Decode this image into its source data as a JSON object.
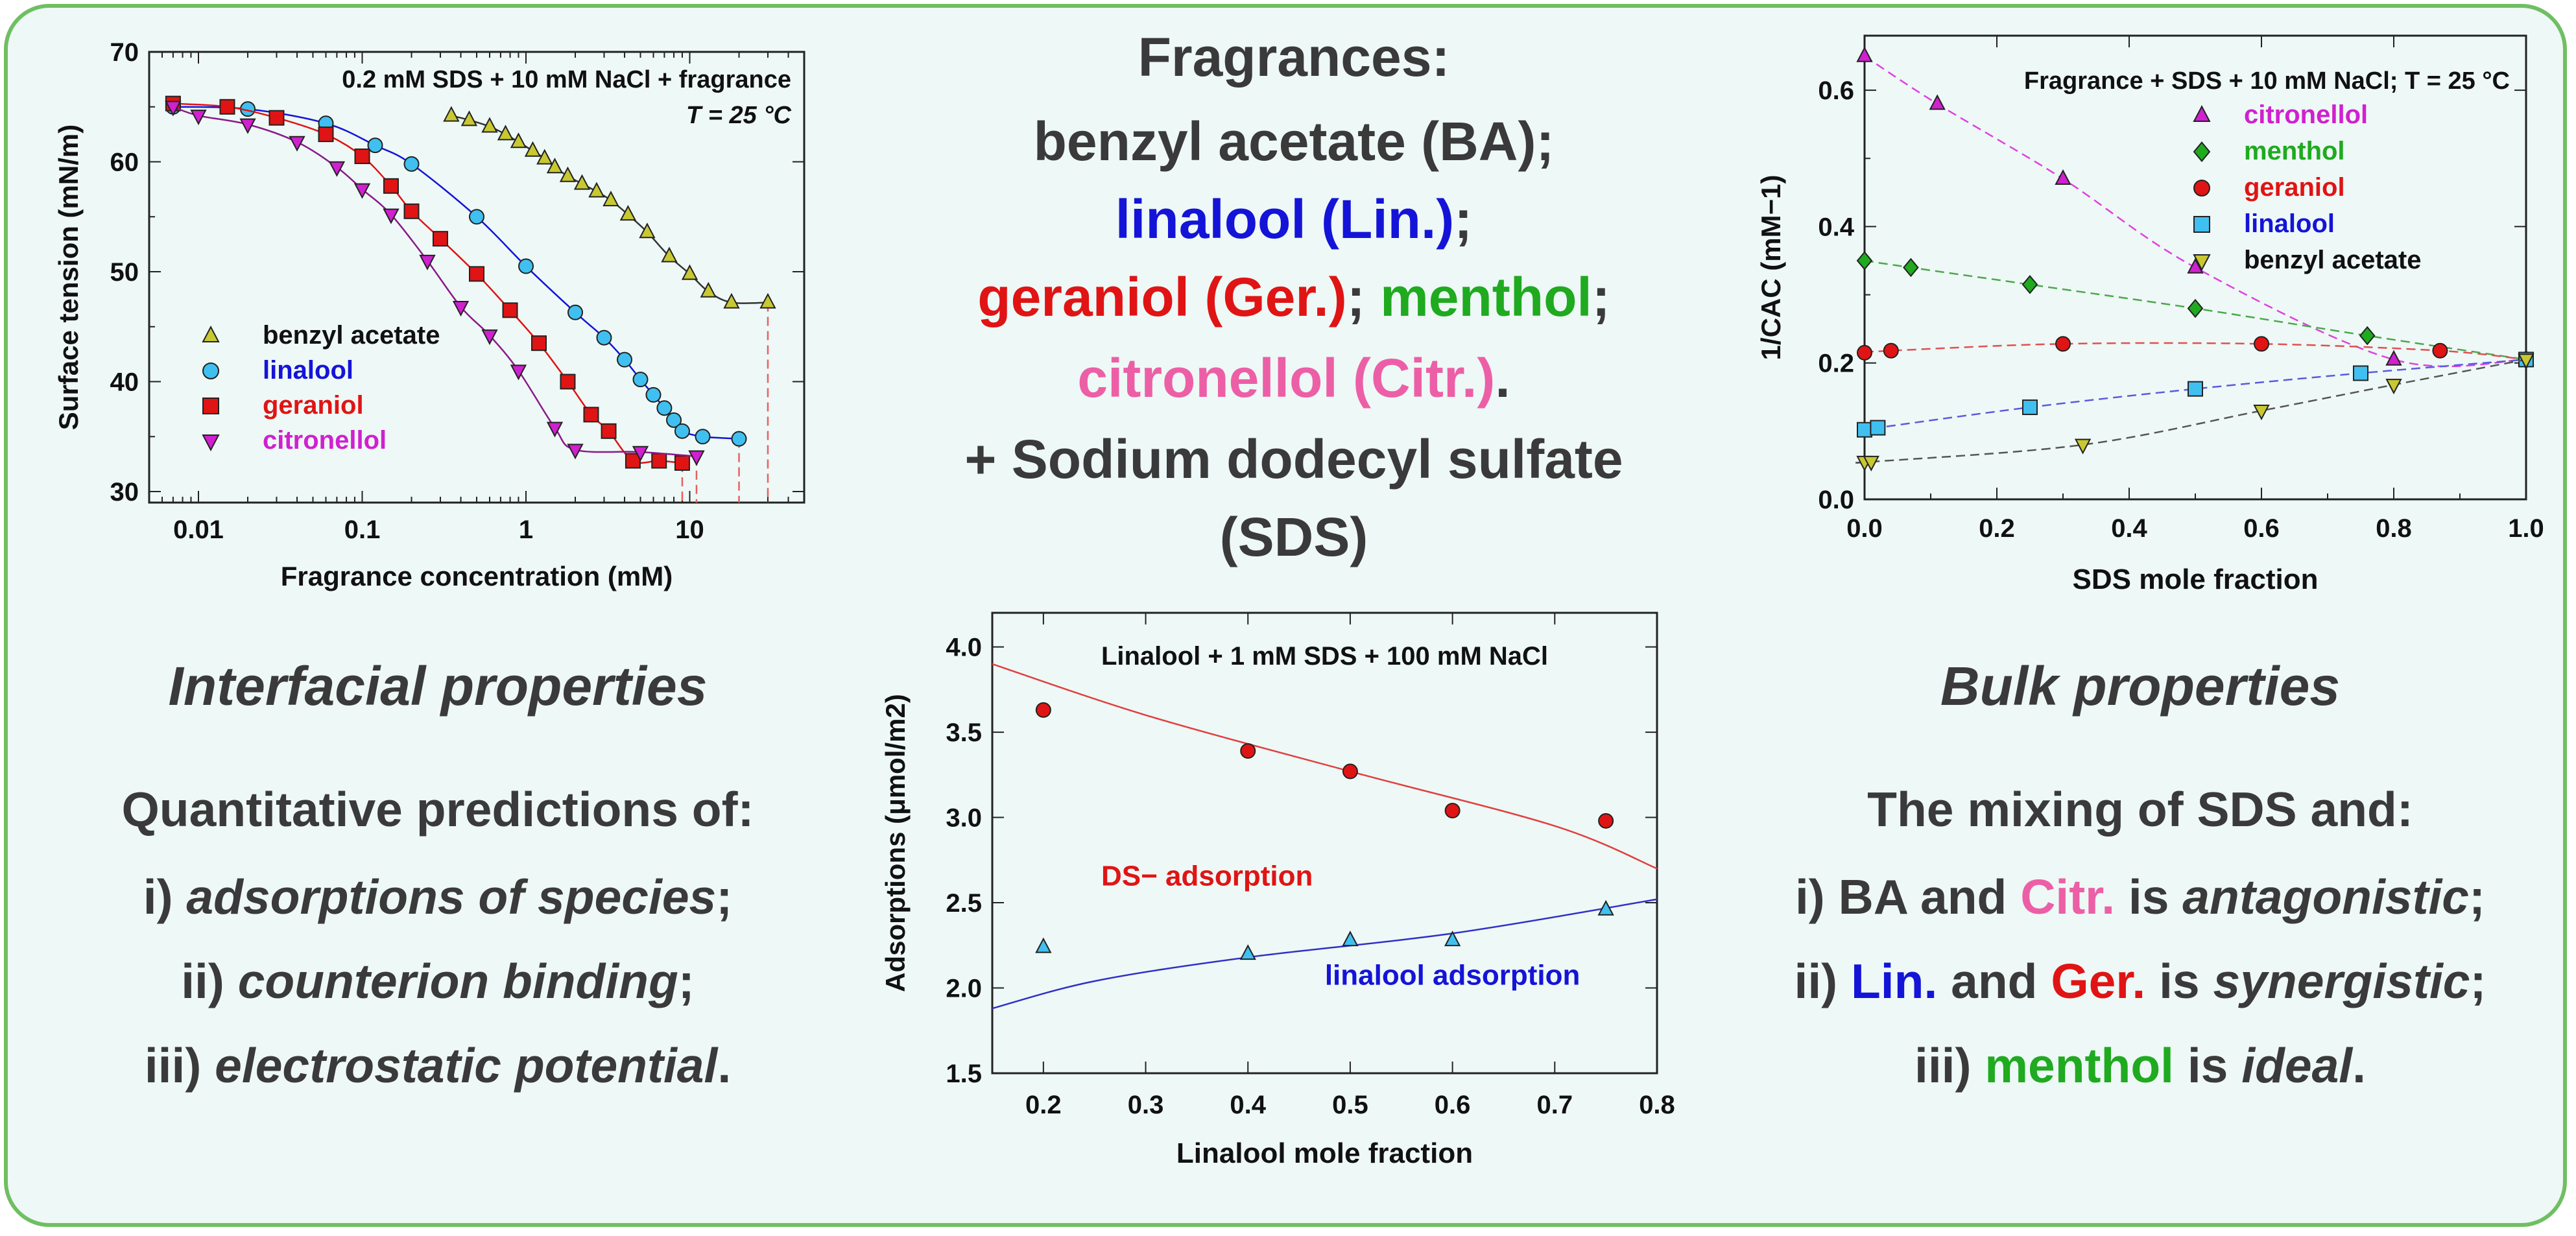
{
  "colors": {
    "border": "#6fbf62",
    "background": "#eef8f6",
    "text": "#3a3a3a",
    "blue": "#1414d8",
    "red": "#e01414",
    "green": "#1faa1f",
    "pink": "#ec5fa6",
    "magenta": "#d020d0",
    "olive": "#c8c832",
    "cyan": "#40c0f0"
  },
  "center": {
    "title": "Fragrances:",
    "ba": "benzyl acetate (BA);",
    "lin": "linalool (Lin.)",
    "semi1": ";",
    "ger": "geraniol (Ger.)",
    "semi2": "; ",
    "menthol": "menthol",
    "semi3": ";",
    "citr": "citronellol (Citr.)",
    "dot": ".",
    "sds1": "+ Sodium dodecyl sulfate",
    "sds2": "(SDS)"
  },
  "left": {
    "heading": "Interfacial properties",
    "intro": "Quantitative predictions of:",
    "i_num": "i) ",
    "i_text": "adsorptions of species",
    "i_end": ";",
    "ii_num": "ii) ",
    "ii_text": "counterion binding",
    "ii_end": ";",
    "iii_num": "iii) ",
    "iii_text": "electrostatic potential",
    "iii_end": "."
  },
  "right": {
    "heading": "Bulk properties",
    "intro": "The mixing of SDS and:",
    "i_num": "i) ",
    "i_ba": "BA",
    "i_and": " and ",
    "i_citr": "Citr.",
    "i_is": " is ",
    "i_word": "antagonistic",
    "i_end": ";",
    "ii_num": "ii) ",
    "ii_lin": "Lin.",
    "ii_and": " and ",
    "ii_ger": "Ger.",
    "ii_is": " is ",
    "ii_word": "synergistic",
    "ii_end": ";",
    "iii_num": "iii) ",
    "iii_menthol": "menthol",
    "iii_is": " is ",
    "iii_word": "ideal",
    "iii_end": "."
  },
  "chart_data": [
    {
      "type": "scatter",
      "annotation": "0.2 mM SDS + 10 mM NaCl + fragrance",
      "temp_label": "T = 25 °C",
      "xlabel": "Fragrance concentration (mM)",
      "ylabel": "Surface tension (mN/m)",
      "xscale": "log",
      "xlim": [
        0.005,
        50
      ],
      "ylim": [
        29,
        70
      ],
      "xticks": [
        0.01,
        0.1,
        1,
        10
      ],
      "xtick_labels": [
        "0.01",
        "0.1",
        "1",
        "10"
      ],
      "yticks": [
        30,
        40,
        50,
        60,
        70
      ],
      "legend_position": "bottom-left",
      "series": [
        {
          "name": "benzyl acetate",
          "marker": "triangle-up",
          "color": "#c8c832",
          "x": [
            0.35,
            0.45,
            0.6,
            0.75,
            0.9,
            1.1,
            1.3,
            1.5,
            1.8,
            2.2,
            2.7,
            3.3,
            4.2,
            5.5,
            7.5,
            10,
            13,
            18,
            30
          ],
          "y": [
            64.2,
            63.8,
            63.2,
            62.5,
            61.8,
            61,
            60.3,
            59.5,
            58.7,
            58,
            57.3,
            56.5,
            55.2,
            53.6,
            51.4,
            49.8,
            48.2,
            47.2,
            47.2
          ]
        },
        {
          "name": "linalool",
          "marker": "circle",
          "color": "#40c0f0",
          "x": [
            0.007,
            0.02,
            0.06,
            0.12,
            0.2,
            0.5,
            1,
            2,
            3,
            4,
            5,
            6,
            7,
            8,
            9,
            12,
            20
          ],
          "y": [
            65,
            64.8,
            63.5,
            61.5,
            59.8,
            55,
            50.5,
            46.3,
            44,
            42,
            40.2,
            38.8,
            37.6,
            36.5,
            35.5,
            35,
            34.8
          ]
        },
        {
          "name": "geraniol",
          "marker": "square",
          "color": "#e01414",
          "x": [
            0.007,
            0.015,
            0.03,
            0.06,
            0.1,
            0.15,
            0.2,
            0.3,
            0.5,
            0.8,
            1.2,
            1.8,
            2.5,
            3.2,
            4.5,
            6.5,
            9
          ],
          "y": [
            65.3,
            65,
            64,
            62.5,
            60.5,
            57.8,
            55.5,
            53,
            49.8,
            46.5,
            43.5,
            40,
            37,
            35.5,
            32.8,
            32.8,
            32.6
          ]
        },
        {
          "name": "citronellol",
          "marker": "triangle-down",
          "color": "#d020d0",
          "x": [
            0.007,
            0.01,
            0.02,
            0.04,
            0.07,
            0.1,
            0.15,
            0.25,
            0.4,
            0.6,
            0.9,
            1.5,
            2,
            5,
            11
          ],
          "y": [
            65,
            64.2,
            63.4,
            61.8,
            59.5,
            57.5,
            55.2,
            51,
            46.8,
            44.2,
            41,
            35.8,
            33.8,
            33.6,
            33.2
          ]
        }
      ]
    },
    {
      "type": "line",
      "annotation": "Fragrance + SDS + 10 mM NaCl; T = 25 °C",
      "xlabel": "SDS mole fraction",
      "ylabel": "1/CAC (mM−1)",
      "xlim": [
        0,
        1
      ],
      "ylim": [
        0,
        0.68
      ],
      "xticks": [
        0,
        0.2,
        0.4,
        0.6,
        0.8,
        1
      ],
      "xtick_labels": [
        "0.0",
        "0.2",
        "0.4",
        "0.6",
        "0.8",
        "1.0"
      ],
      "yticks": [
        0,
        0.2,
        0.4,
        0.6
      ],
      "ytick_labels": [
        "0.0",
        "0.2",
        "0.4",
        "0.6"
      ],
      "legend_position": "top-right",
      "series": [
        {
          "name": "citronellol",
          "marker": "triangle-up",
          "color": "#d020d0",
          "x": [
            0,
            0.11,
            0.3,
            0.5,
            0.8,
            1.0
          ],
          "y": [
            0.65,
            0.58,
            0.47,
            0.34,
            0.205,
            0.205
          ]
        },
        {
          "name": "menthol",
          "marker": "diamond",
          "color": "#1faa1f",
          "x": [
            0,
            0.07,
            0.25,
            0.5,
            0.76,
            1.0
          ],
          "y": [
            0.35,
            0.34,
            0.315,
            0.28,
            0.24,
            0.205
          ]
        },
        {
          "name": "geraniol",
          "marker": "circle",
          "color": "#e01414",
          "x": [
            0,
            0.04,
            0.3,
            0.6,
            0.87,
            1.0
          ],
          "y": [
            0.215,
            0.218,
            0.228,
            0.228,
            0.218,
            0.205
          ]
        },
        {
          "name": "linalool",
          "marker": "square",
          "color": "#40c0f0",
          "x": [
            0,
            0.02,
            0.25,
            0.5,
            0.75,
            1.0
          ],
          "y": [
            0.102,
            0.105,
            0.135,
            0.162,
            0.185,
            0.205
          ]
        },
        {
          "name": "benzyl acetate",
          "marker": "triangle-down",
          "color": "#c8c832",
          "x": [
            0,
            0.01,
            0.33,
            0.6,
            0.8,
            1.0
          ],
          "y": [
            0.055,
            0.055,
            0.08,
            0.13,
            0.168,
            0.205
          ]
        }
      ]
    },
    {
      "type": "scatter",
      "annotation": "Linalool + 1 mM SDS + 100 mM NaCl",
      "xlabel": "Linalool mole fraction",
      "ylabel": "Adsorptions (μmol/m2)",
      "xlim": [
        0.15,
        0.8
      ],
      "ylim": [
        1.5,
        4.2
      ],
      "xticks": [
        0.2,
        0.3,
        0.4,
        0.5,
        0.6,
        0.7,
        0.8
      ],
      "yticks": [
        1.5,
        2.0,
        2.5,
        3.0,
        3.5,
        4.0
      ],
      "ytick_labels": [
        "1.5",
        "2.0",
        "2.5",
        "3.0",
        "3.5",
        "4.0"
      ],
      "series": [
        {
          "name": "DS− adsorption",
          "marker": "circle",
          "color": "#e01414",
          "x": [
            0.2,
            0.4,
            0.5,
            0.6,
            0.75
          ],
          "y": [
            3.63,
            3.39,
            3.27,
            3.04,
            2.98
          ],
          "fit_x": [
            0.15,
            0.3,
            0.5,
            0.7,
            0.8
          ],
          "fit_y": [
            3.9,
            3.6,
            3.27,
            2.95,
            2.7
          ]
        },
        {
          "name": "linalool adsorption",
          "marker": "triangle-up",
          "color": "#40c0f0",
          "x": [
            0.2,
            0.4,
            0.5,
            0.6,
            0.75
          ],
          "y": [
            2.24,
            2.2,
            2.28,
            2.28,
            2.46
          ],
          "fit_x": [
            0.15,
            0.25,
            0.4,
            0.6,
            0.8
          ],
          "fit_y": [
            1.88,
            2.04,
            2.18,
            2.32,
            2.52
          ]
        }
      ]
    }
  ]
}
